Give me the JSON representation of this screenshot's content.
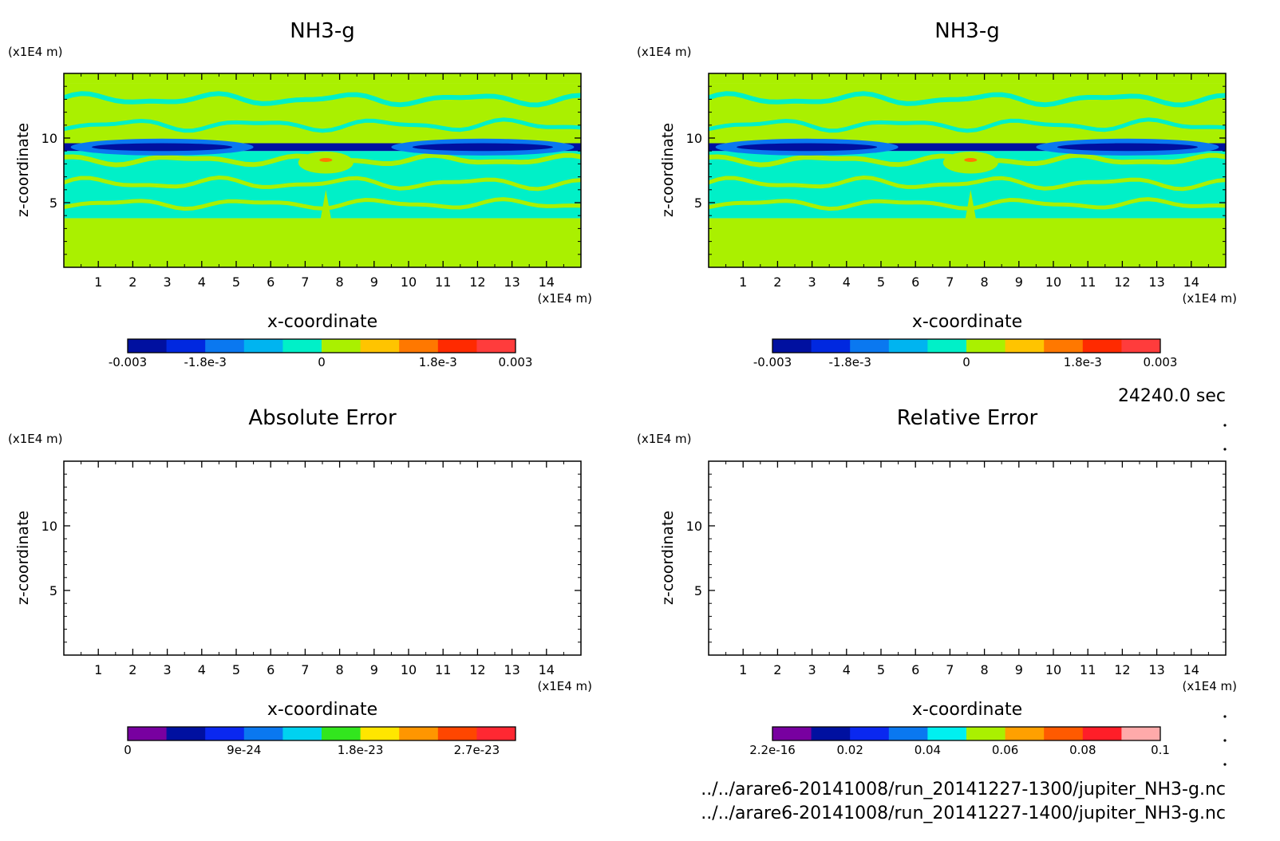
{
  "time_label": "24240.0 sec",
  "files": [
    "../../arare6-20141008/run_20141227-1300/jupiter_NH3-g.nc",
    "../../arare6-20141008/run_20141227-1400/jupiter_NH3-g.nc"
  ],
  "chart_data": [
    {
      "type": "heatmap",
      "title": "NH3-g",
      "xlabel": "x-coordinate",
      "ylabel": "z-coordinate",
      "x_unit": "(x1E4 m)",
      "y_unit": "(x1E4 m)",
      "xlim": [
        0,
        15
      ],
      "ylim": [
        0,
        15
      ],
      "x_ticks": [
        1,
        2,
        3,
        4,
        5,
        6,
        7,
        8,
        9,
        10,
        11,
        12,
        13,
        14
      ],
      "y_ticks": [
        5,
        10
      ],
      "colorbar": {
        "min": -0.003,
        "max": 0.003,
        "tick_values": [
          -0.003,
          -0.0018,
          0,
          0.0018,
          0.003
        ],
        "tick_labels": [
          "-0.003",
          "-1.8e-3",
          "0",
          "1.8e-3",
          "0.003"
        ],
        "colors": [
          "#0010a0",
          "#0028e0",
          "#0a78f0",
          "#00b4f0",
          "#00f0c8",
          "#aaf000",
          "#ffc400",
          "#ff7800",
          "#ff2a00",
          "#ff3c3c"
        ]
      },
      "field_levels": [
        {
          "z_range": [
            0,
            3.8
          ],
          "value_range": [
            0,
            0.0006
          ]
        },
        {
          "z_range": [
            3.8,
            9.0
          ],
          "value_range": [
            -0.0006,
            0
          ]
        },
        {
          "z_range": [
            9.0,
            9.6
          ],
          "value_range": [
            -0.003,
            -0.0024
          ]
        },
        {
          "z_range": [
            9.6,
            14.2
          ],
          "value_range": [
            -0.0006,
            0.0006
          ]
        },
        {
          "z_range": [
            14.2,
            15
          ],
          "value_range": [
            0,
            0.0006
          ]
        }
      ]
    },
    {
      "type": "heatmap",
      "title": "NH3-g",
      "xlabel": "x-coordinate",
      "ylabel": "z-coordinate",
      "x_unit": "(x1E4 m)",
      "y_unit": "(x1E4 m)",
      "xlim": [
        0,
        15
      ],
      "ylim": [
        0,
        15
      ],
      "x_ticks": [
        1,
        2,
        3,
        4,
        5,
        6,
        7,
        8,
        9,
        10,
        11,
        12,
        13,
        14
      ],
      "y_ticks": [
        5,
        10
      ],
      "colorbar": {
        "min": -0.003,
        "max": 0.003,
        "tick_values": [
          -0.003,
          -0.0018,
          0,
          0.0018,
          0.003
        ],
        "tick_labels": [
          "-0.003",
          "-1.8e-3",
          "0",
          "1.8e-3",
          "0.003"
        ],
        "colors": [
          "#0010a0",
          "#0028e0",
          "#0a78f0",
          "#00b4f0",
          "#00f0c8",
          "#aaf000",
          "#ffc400",
          "#ff7800",
          "#ff2a00",
          "#ff3c3c"
        ]
      },
      "field_levels": [
        {
          "z_range": [
            0,
            3.8
          ],
          "value_range": [
            0,
            0.0006
          ]
        },
        {
          "z_range": [
            3.8,
            9.0
          ],
          "value_range": [
            -0.0006,
            0
          ]
        },
        {
          "z_range": [
            9.0,
            9.6
          ],
          "value_range": [
            -0.003,
            -0.0024
          ]
        },
        {
          "z_range": [
            9.6,
            14.2
          ],
          "value_range": [
            -0.0006,
            0.0006
          ]
        },
        {
          "z_range": [
            14.2,
            15
          ],
          "value_range": [
            0,
            0.0006
          ]
        }
      ]
    },
    {
      "type": "heatmap",
      "title": "Absolute Error",
      "xlabel": "x-coordinate",
      "ylabel": "z-coordinate",
      "x_unit": "(x1E4 m)",
      "y_unit": "(x1E4 m)",
      "xlim": [
        0,
        15
      ],
      "ylim": [
        0,
        15
      ],
      "x_ticks": [
        1,
        2,
        3,
        4,
        5,
        6,
        7,
        8,
        9,
        10,
        11,
        12,
        13,
        14
      ],
      "y_ticks": [
        5,
        10
      ],
      "colorbar": {
        "min": 0,
        "max": 3e-23,
        "tick_values": [
          0,
          9e-24,
          1.8e-23,
          2.7e-23
        ],
        "tick_labels": [
          "0",
          "9e-24",
          "1.8e-23",
          "2.7e-23"
        ],
        "colors": [
          "#7800a0",
          "#0010a0",
          "#0a28f0",
          "#0a78f0",
          "#00d2f0",
          "#32e61e",
          "#ffe600",
          "#ff9600",
          "#ff4600",
          "#ff2832"
        ]
      },
      "field_levels": []
    },
    {
      "type": "heatmap",
      "title": "Relative Error",
      "xlabel": "x-coordinate",
      "ylabel": "z-coordinate",
      "x_unit": "(x1E4 m)",
      "y_unit": "(x1E4 m)",
      "xlim": [
        0,
        15
      ],
      "ylim": [
        0,
        15
      ],
      "x_ticks": [
        1,
        2,
        3,
        4,
        5,
        6,
        7,
        8,
        9,
        10,
        11,
        12,
        13,
        14
      ],
      "y_ticks": [
        5,
        10
      ],
      "colorbar": {
        "min": 2.2e-16,
        "max": 0.1,
        "tick_values": [
          2.2e-16,
          0.02,
          0.04,
          0.06,
          0.08,
          0.1
        ],
        "tick_labels": [
          "2.2e-16",
          "0.02",
          "0.04",
          "0.06",
          "0.08",
          "0.1"
        ],
        "colors": [
          "#7800a0",
          "#0010a0",
          "#0a28f0",
          "#0a78f0",
          "#00f0f0",
          "#aaf000",
          "#ffa000",
          "#ff5a00",
          "#ff1e28",
          "#ffaaaa"
        ]
      },
      "field_levels": []
    }
  ]
}
